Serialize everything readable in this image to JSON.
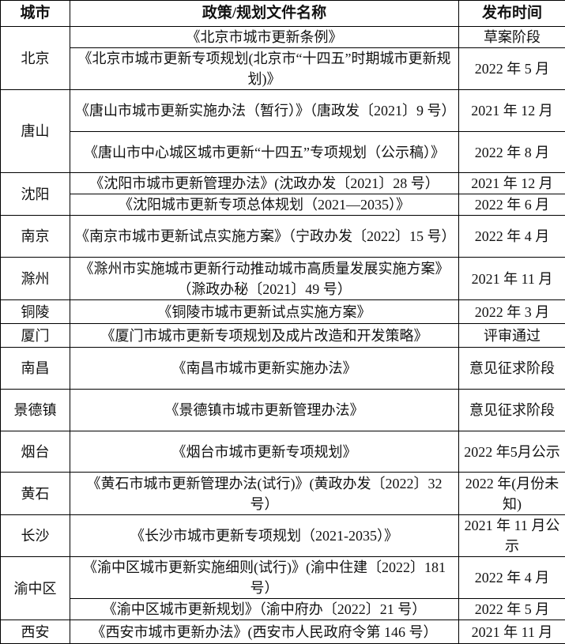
{
  "header": {
    "city": "城市",
    "document": "政策/规划文件名称",
    "date": "发布时间"
  },
  "groups": [
    {
      "city": "北京",
      "docs": [
        {
          "name": "《北京市城市更新条例》",
          "date": "草案阶段"
        },
        {
          "name": "《北京市城市更新专项规划(北京市“十四五”时期城市更新规划)》",
          "date": "2022 年 5 月"
        }
      ]
    },
    {
      "city": "唐山",
      "docs": [
        {
          "name": "《唐山市城市更新实施办法（暂行）》（唐政发〔2021〕9 号）",
          "date": "2021 年 12 月"
        },
        {
          "name": "《唐山市中心城区城市更新“十四五”专项规划（公示稿）》",
          "date": "2022 年 8 月"
        }
      ]
    },
    {
      "city": "沈阳",
      "docs": [
        {
          "name": "《沈阳市城市更新管理办法》(沈政办发〔2021〕28 号）",
          "date": "2021 年 12 月"
        },
        {
          "name": "《沈阳城市更新专项总体规划（2021—2035）》",
          "date": "2022 年 6 月"
        }
      ]
    },
    {
      "city": "南京",
      "docs": [
        {
          "name": "《南京市城市更新试点实施方案》（宁政办发〔2022〕15 号）",
          "date": "2022 年 4 月"
        }
      ]
    },
    {
      "city": "滁州",
      "docs": [
        {
          "name": "《滁州市实施城市更新行动推动城市高质量发展实施方案》（滁政办秘〔2021〕49 号）",
          "date": "2021 年 11 月"
        }
      ]
    },
    {
      "city": "铜陵",
      "docs": [
        {
          "name": "《铜陵市城市更新试点实施方案》",
          "date": "2022 年 3 月"
        }
      ]
    },
    {
      "city": "厦门",
      "docs": [
        {
          "name": "《厦门市城市更新专项规划及成片改造和开发策略》",
          "date": "评审通过"
        }
      ]
    },
    {
      "city": "南昌",
      "docs": [
        {
          "name": "《南昌市城市更新实施办法》",
          "date": "意见征求阶段"
        }
      ]
    },
    {
      "city": "景德镇",
      "docs": [
        {
          "name": "《景德镇市城市更新管理办法》",
          "date": "意见征求阶段"
        }
      ]
    },
    {
      "city": "烟台",
      "docs": [
        {
          "name": "《烟台市城市更新专项规划》",
          "date": "2022 年5月公示"
        }
      ]
    },
    {
      "city": "黄石",
      "docs": [
        {
          "name": "《黄石市城市更新管理办法(试行)》(黄政办发〔2022〕32 号）",
          "date": "2022 年(月份未知)"
        }
      ]
    },
    {
      "city": "长沙",
      "docs": [
        {
          "name": "《长沙市城市更新专项规划（2021-2035）》",
          "date": "2021 年 11 月公示"
        }
      ]
    },
    {
      "city": "渝中区",
      "docs": [
        {
          "name": "《渝中区城市更新实施细则(试行)》(渝中住建〔2022〕181 号）",
          "date": "2022 年 4 月"
        },
        {
          "name": "《渝中区城市更新规划》（渝中府办〔2022〕21 号）",
          "date": "2022 年 5 月"
        }
      ]
    },
    {
      "city": "西安",
      "docs": [
        {
          "name": "《西安市城市更新办法》(西安市人民政府令第 146 号）",
          "date": "2021 年 11 月"
        }
      ]
    }
  ]
}
